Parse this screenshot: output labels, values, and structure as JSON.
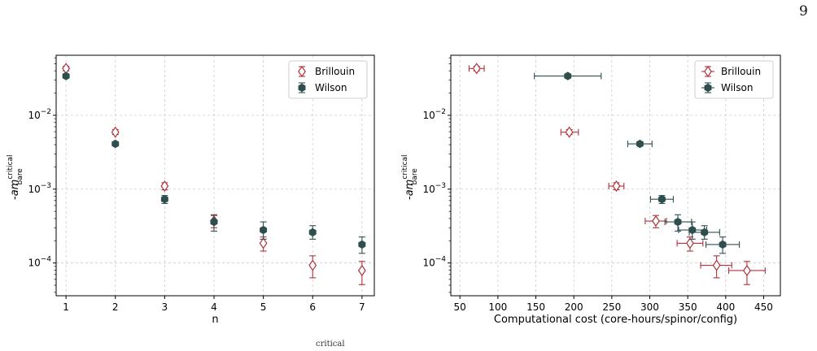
{
  "page_number": "9",
  "caption_fragment": "critical",
  "colors": {
    "brillouin": "#b2323a",
    "wilson": "#2f4f4f",
    "grid": "#cccccc",
    "axis": "#000000"
  },
  "chart_data": [
    {
      "type": "scatter",
      "xlabel": "n",
      "ylabel_main": "-am",
      "ylabel_sup": "critical",
      "ylabel_sub": "bare",
      "yscale": "log",
      "xlim": [
        0.8,
        7.25
      ],
      "ylim": [
        3.6e-05,
        0.065
      ],
      "xticks": [
        1,
        2,
        3,
        4,
        5,
        6,
        7
      ],
      "yticks": [
        0.0001,
        0.001,
        0.01
      ],
      "ytick_labels": [
        [
          "10",
          "−4"
        ],
        [
          "10",
          "−3"
        ],
        [
          "10",
          "−2"
        ]
      ],
      "grid": true,
      "legend_position": "top-right",
      "series": [
        {
          "name": "Brillouin",
          "marker": "diamond-open",
          "points": [
            {
              "x": 1,
              "y": 0.043,
              "ylo": 0.04,
              "yhi": 0.046
            },
            {
              "x": 2,
              "y": 0.0059,
              "ylo": 0.0055,
              "yhi": 0.0064
            },
            {
              "x": 3,
              "y": 0.0011,
              "ylo": 0.00098,
              "yhi": 0.00122
            },
            {
              "x": 4,
              "y": 0.00037,
              "ylo": 0.0003,
              "yhi": 0.00044
            },
            {
              "x": 5,
              "y": 0.000185,
              "ylo": 0.000145,
              "yhi": 0.000225
            },
            {
              "x": 6,
              "y": 9.3e-05,
              "ylo": 6.3e-05,
              "yhi": 0.000125
            },
            {
              "x": 7,
              "y": 7.9e-05,
              "ylo": 5.1e-05,
              "yhi": 0.000105
            }
          ]
        },
        {
          "name": "Wilson",
          "marker": "hexagon-filled",
          "points": [
            {
              "x": 1,
              "y": 0.034,
              "ylo": 0.032,
              "yhi": 0.036
            },
            {
              "x": 2,
              "y": 0.0041,
              "ylo": 0.0039,
              "yhi": 0.0043
            },
            {
              "x": 3,
              "y": 0.00073,
              "ylo": 0.00064,
              "yhi": 0.00082
            },
            {
              "x": 4,
              "y": 0.00036,
              "ylo": 0.00027,
              "yhi": 0.00045
            },
            {
              "x": 5,
              "y": 0.00028,
              "ylo": 0.00021,
              "yhi": 0.00036
            },
            {
              "x": 6,
              "y": 0.00026,
              "ylo": 0.00021,
              "yhi": 0.00032
            },
            {
              "x": 7,
              "y": 0.000178,
              "ylo": 0.000135,
              "yhi": 0.000225
            }
          ]
        }
      ]
    },
    {
      "type": "scatter",
      "xlabel": "Computational cost (core-hours/spinor/config)",
      "ylabel_main": "-am",
      "ylabel_sup": "critical",
      "ylabel_sub": "bare",
      "yscale": "log",
      "xlim": [
        38,
        472
      ],
      "ylim": [
        3.6e-05,
        0.065
      ],
      "xticks": [
        50,
        100,
        150,
        200,
        250,
        300,
        350,
        400,
        450
      ],
      "yticks": [
        0.0001,
        0.001,
        0.01
      ],
      "ytick_labels": [
        [
          "10",
          "−4"
        ],
        [
          "10",
          "−3"
        ],
        [
          "10",
          "−2"
        ]
      ],
      "grid": true,
      "legend_position": "top-right",
      "series": [
        {
          "name": "Brillouin",
          "marker": "diamond-open",
          "points": [
            {
              "x": 72,
              "y": 0.043,
              "xlo": 62,
              "xhi": 82,
              "ylo": 0.04,
              "yhi": 0.046
            },
            {
              "x": 194,
              "y": 0.0059,
              "xlo": 183,
              "xhi": 206,
              "ylo": 0.0055,
              "yhi": 0.0064
            },
            {
              "x": 256,
              "y": 0.0011,
              "xlo": 246,
              "xhi": 266,
              "ylo": 0.00098,
              "yhi": 0.00122
            },
            {
              "x": 308,
              "y": 0.00037,
              "xlo": 294,
              "xhi": 322,
              "ylo": 0.0003,
              "yhi": 0.00044
            },
            {
              "x": 353,
              "y": 0.000185,
              "xlo": 336,
              "xhi": 370,
              "ylo": 0.000145,
              "yhi": 0.000225
            },
            {
              "x": 388,
              "y": 9.3e-05,
              "xlo": 367,
              "xhi": 408,
              "ylo": 6.3e-05,
              "yhi": 0.000125
            },
            {
              "x": 428,
              "y": 7.9e-05,
              "xlo": 404,
              "xhi": 452,
              "ylo": 5.1e-05,
              "yhi": 0.000105
            }
          ]
        },
        {
          "name": "Wilson",
          "marker": "hexagon-filled",
          "points": [
            {
              "x": 192,
              "y": 0.034,
              "xlo": 148,
              "xhi": 236,
              "ylo": 0.032,
              "yhi": 0.036
            },
            {
              "x": 287,
              "y": 0.0041,
              "xlo": 271,
              "xhi": 303,
              "ylo": 0.0039,
              "yhi": 0.0043
            },
            {
              "x": 316,
              "y": 0.00073,
              "xlo": 301,
              "xhi": 331,
              "ylo": 0.00064,
              "yhi": 0.00082
            },
            {
              "x": 337,
              "y": 0.00036,
              "xlo": 320,
              "xhi": 355,
              "ylo": 0.00027,
              "yhi": 0.00045
            },
            {
              "x": 356,
              "y": 0.00028,
              "xlo": 338,
              "xhi": 375,
              "ylo": 0.00021,
              "yhi": 0.00036
            },
            {
              "x": 372,
              "y": 0.00026,
              "xlo": 352,
              "xhi": 392,
              "ylo": 0.00021,
              "yhi": 0.00032
            },
            {
              "x": 396,
              "y": 0.000178,
              "xlo": 374,
              "xhi": 418,
              "ylo": 0.000135,
              "yhi": 0.000225
            }
          ]
        }
      ]
    }
  ]
}
